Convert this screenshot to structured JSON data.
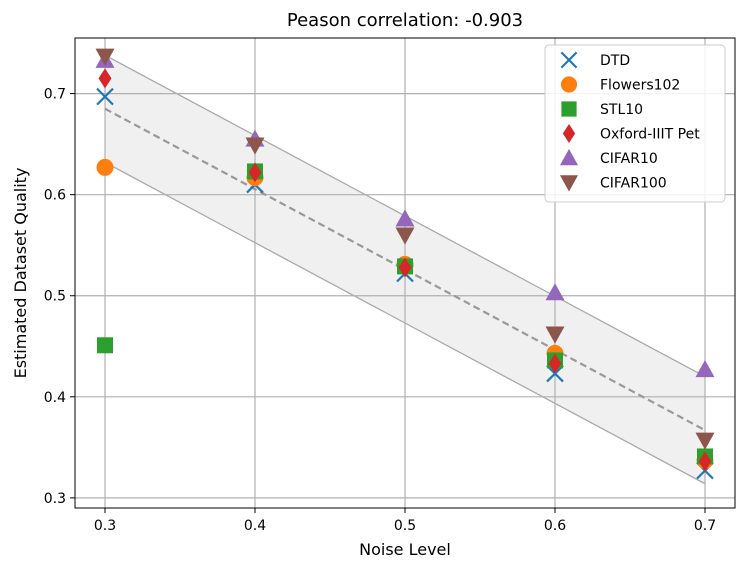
{
  "chart_data": {
    "type": "scatter",
    "title": "Peason correlation: -0.903",
    "xlabel": "Noise Level",
    "ylabel": "Estimated Dataset Quality",
    "xlim": [
      0.28,
      0.72
    ],
    "ylim": [
      0.29,
      0.755
    ],
    "xticks": [
      0.3,
      0.4,
      0.5,
      0.6,
      0.7
    ],
    "xtick_labels": [
      "0.3",
      "0.4",
      "0.5",
      "0.6",
      "0.7"
    ],
    "yticks": [
      0.3,
      0.4,
      0.5,
      0.6,
      0.7
    ],
    "ytick_labels": [
      "0.3",
      "0.4",
      "0.5",
      "0.6",
      "0.7"
    ],
    "grid": true,
    "legend_position": "top-right",
    "fit_line": {
      "x": [
        0.3,
        0.7
      ],
      "y": [
        0.685,
        0.367
      ],
      "style": "dashed",
      "color": "#999999"
    },
    "confidence_band": {
      "x": [
        0.3,
        0.7
      ],
      "upper": [
        0.738,
        0.42
      ],
      "lower": [
        0.632,
        0.314
      ],
      "fill": "#f0f0f0",
      "edge": "#aaaaaa"
    },
    "series": [
      {
        "name": "DTD",
        "marker": "x",
        "color": "#1f77b4",
        "x": [
          0.3,
          0.4,
          0.5,
          0.6,
          0.7
        ],
        "y": [
          0.697,
          0.61,
          0.522,
          0.423,
          0.327
        ]
      },
      {
        "name": "Flowers102",
        "marker": "circle",
        "color": "#ff7f0e",
        "x": [
          0.3,
          0.4,
          0.5,
          0.6,
          0.7
        ],
        "y": [
          0.627,
          0.617,
          0.531,
          0.443,
          0.337
        ]
      },
      {
        "name": "STL10",
        "marker": "square",
        "color": "#2ca02c",
        "x": [
          0.3,
          0.4,
          0.5,
          0.6,
          0.7
        ],
        "y": [
          0.451,
          0.623,
          0.529,
          0.436,
          0.341
        ]
      },
      {
        "name": "Oxford-IIIT Pet",
        "marker": "diamond",
        "color": "#d62728",
        "x": [
          0.3,
          0.4,
          0.5,
          0.6,
          0.7
        ],
        "y": [
          0.715,
          0.622,
          0.528,
          0.433,
          0.336
        ]
      },
      {
        "name": "CIFAR10",
        "marker": "triangle-up",
        "color": "#9467bd",
        "x": [
          0.3,
          0.4,
          0.5,
          0.6,
          0.7
        ],
        "y": [
          0.733,
          0.655,
          0.576,
          0.503,
          0.427
        ]
      },
      {
        "name": "CIFAR100",
        "marker": "triangle-down",
        "color": "#8c564b",
        "x": [
          0.3,
          0.4,
          0.5,
          0.6,
          0.7
        ],
        "y": [
          0.737,
          0.649,
          0.56,
          0.462,
          0.357
        ]
      }
    ]
  }
}
